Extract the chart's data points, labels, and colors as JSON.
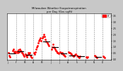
{
  "title": "Milwaukee Weather Evapotranspiration\nper Day (Ozs sq/ft)",
  "background_color": "#c8c8c8",
  "plot_bg_color": "#ffffff",
  "ylabel_right": [
    "0.0",
    "0.5",
    "1.0",
    "1.5",
    "2.0",
    "2.5",
    "3.0",
    "3.5"
  ],
  "ylim": [
    -0.05,
    3.7
  ],
  "legend_label": "ET",
  "legend_color": "#ff0000",
  "dot_color": "#ff0000",
  "dash_color": "#000000",
  "grid_color": "#888888",
  "vlines_x": [
    12,
    24,
    36,
    48,
    60,
    72,
    84,
    96,
    108,
    120,
    132
  ],
  "red_dots": [
    [
      2,
      0.55
    ],
    [
      3,
      0.3
    ],
    [
      4,
      0.2
    ],
    [
      7,
      0.7
    ],
    [
      8,
      0.8
    ],
    [
      9,
      0.6
    ],
    [
      10,
      0.65
    ],
    [
      11,
      0.5
    ],
    [
      13,
      0.65
    ],
    [
      14,
      0.55
    ],
    [
      15,
      0.75
    ],
    [
      16,
      0.6
    ],
    [
      17,
      0.8
    ],
    [
      18,
      0.7
    ],
    [
      19,
      0.65
    ],
    [
      20,
      0.55
    ],
    [
      21,
      0.45
    ],
    [
      22,
      0.35
    ],
    [
      23,
      0.25
    ],
    [
      25,
      0.4
    ],
    [
      26,
      0.3
    ],
    [
      27,
      0.2
    ],
    [
      28,
      0.35
    ],
    [
      29,
      0.5
    ],
    [
      30,
      0.4
    ],
    [
      31,
      0.55
    ],
    [
      32,
      0.3
    ],
    [
      33,
      0.2
    ],
    [
      34,
      0.15
    ],
    [
      37,
      0.5
    ],
    [
      38,
      0.4
    ],
    [
      39,
      0.6
    ],
    [
      40,
      0.8
    ],
    [
      41,
      1.0
    ],
    [
      42,
      1.1
    ],
    [
      43,
      1.3
    ],
    [
      44,
      1.5
    ],
    [
      45,
      1.6
    ],
    [
      46,
      1.7
    ],
    [
      47,
      1.5
    ],
    [
      49,
      1.7
    ],
    [
      50,
      1.8
    ],
    [
      51,
      2.0
    ],
    [
      52,
      1.8
    ],
    [
      53,
      1.6
    ],
    [
      54,
      1.4
    ],
    [
      55,
      1.3
    ],
    [
      56,
      1.2
    ],
    [
      57,
      1.1
    ],
    [
      61,
      0.8
    ],
    [
      62,
      1.0
    ],
    [
      63,
      1.2
    ],
    [
      64,
      1.0
    ],
    [
      65,
      0.9
    ],
    [
      66,
      0.8
    ],
    [
      67,
      0.7
    ],
    [
      68,
      0.65
    ],
    [
      69,
      0.55
    ],
    [
      70,
      0.5
    ],
    [
      71,
      0.45
    ],
    [
      73,
      0.6
    ],
    [
      74,
      0.55
    ],
    [
      75,
      0.45
    ],
    [
      76,
      0.5
    ],
    [
      77,
      0.4
    ],
    [
      78,
      0.35
    ],
    [
      79,
      0.3
    ],
    [
      80,
      0.25
    ],
    [
      85,
      0.6
    ],
    [
      86,
      0.55
    ],
    [
      87,
      0.5
    ],
    [
      88,
      0.45
    ],
    [
      89,
      0.4
    ],
    [
      91,
      0.3
    ],
    [
      92,
      0.25
    ],
    [
      93,
      0.3
    ],
    [
      94,
      0.35
    ],
    [
      95,
      0.4
    ],
    [
      97,
      0.3
    ],
    [
      98,
      0.25
    ],
    [
      99,
      0.2
    ],
    [
      100,
      0.15
    ],
    [
      101,
      0.25
    ],
    [
      109,
      0.2
    ],
    [
      110,
      0.15
    ],
    [
      111,
      0.2
    ],
    [
      121,
      0.3
    ],
    [
      122,
      0.25
    ],
    [
      123,
      0.2
    ],
    [
      124,
      0.15
    ],
    [
      133,
      0.25
    ],
    [
      134,
      0.2
    ],
    [
      135,
      0.15
    ]
  ],
  "black_dashes": [
    [
      6,
      0.45
    ],
    [
      18,
      0.62
    ],
    [
      30,
      0.33
    ],
    [
      54,
      1.45
    ],
    [
      66,
      0.95
    ],
    [
      78,
      0.45
    ],
    [
      90,
      0.32
    ],
    [
      102,
      0.22
    ],
    [
      126,
      0.2
    ]
  ],
  "xtick_positions": [
    0,
    12,
    24,
    36,
    48,
    60,
    72,
    84,
    96,
    108,
    120,
    132,
    144
  ],
  "xtick_labels": [
    "J",
    "F",
    "M",
    "A",
    "M",
    "J",
    "J",
    "A",
    "S",
    "O",
    "N",
    "D",
    ""
  ]
}
